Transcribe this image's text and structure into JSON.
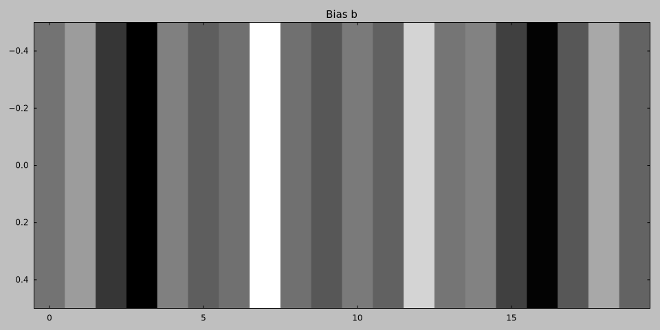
{
  "chart_data": {
    "type": "heatmap",
    "title": "Bias b",
    "xlabel": "",
    "ylabel": "",
    "colormap": "gray",
    "background": "#bfbfbf",
    "x_range": [
      -0.5,
      19.5
    ],
    "y_range": [
      -0.5,
      0.5
    ],
    "y_inverted": true,
    "grid": false,
    "x_ticks": [
      0,
      5,
      10,
      15
    ],
    "x_tick_labels": [
      "0",
      "5",
      "10",
      "15"
    ],
    "y_ticks": [
      -0.4,
      -0.2,
      0.0,
      0.2,
      0.4
    ],
    "y_tick_labels": [
      "−0.4",
      "−0.2",
      "0.0",
      "0.2",
      "0.4"
    ],
    "rows": 1,
    "columns": 20,
    "values": [
      0.45,
      0.61,
      0.21,
      0.0,
      0.5,
      0.37,
      0.44,
      1.0,
      0.44,
      0.34,
      0.48,
      0.38,
      0.83,
      0.46,
      0.51,
      0.25,
      0.01,
      0.34,
      0.66,
      0.39
    ]
  }
}
